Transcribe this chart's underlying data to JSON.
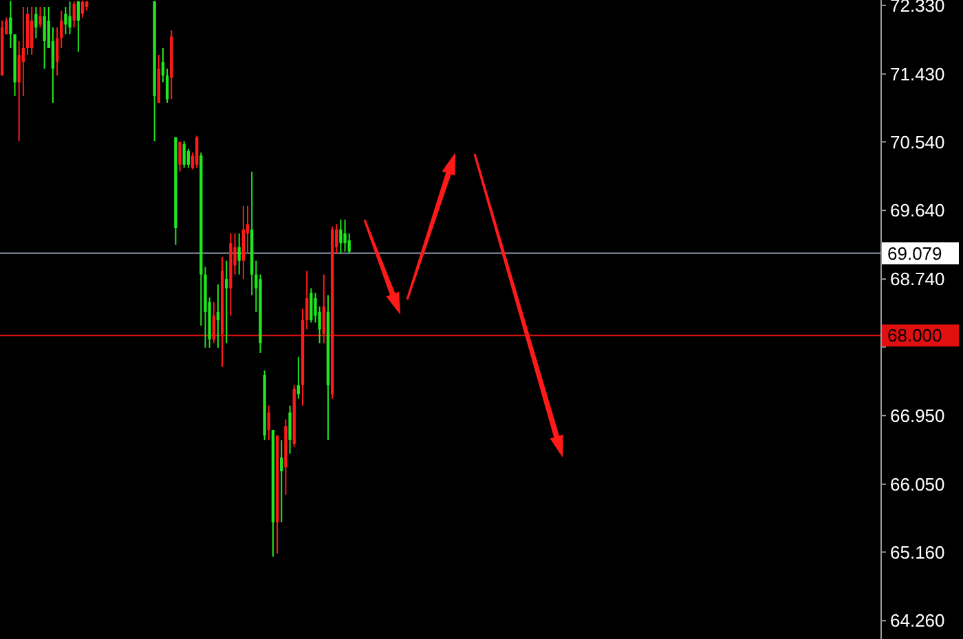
{
  "chart_data": {
    "type": "candlestick",
    "categories": [
      null,
      null,
      null,
      null,
      null,
      null,
      null,
      null,
      null,
      null,
      null,
      null,
      null,
      null,
      null,
      null,
      null,
      null,
      null,
      null,
      null,
      null,
      null,
      null,
      null,
      null,
      null,
      null,
      null,
      null,
      null,
      null,
      null,
      null,
      null,
      null,
      null,
      null,
      null,
      null,
      null,
      null,
      null,
      null,
      null,
      null,
      null,
      null,
      null,
      null,
      null,
      null,
      null,
      null,
      null,
      null,
      null,
      null,
      null,
      null,
      null,
      null,
      null,
      null,
      null,
      null,
      null,
      null,
      null,
      null,
      null,
      null,
      null,
      null,
      null,
      null,
      null,
      null,
      null,
      null,
      null,
      null,
      null,
      null,
      null,
      null,
      null,
      null,
      null,
      null,
      null,
      null,
      null,
      null,
      null,
      null,
      null,
      null,
      null,
      null,
      null,
      null,
      null,
      null,
      null,
      null,
      null,
      null,
      null,
      null,
      null,
      null,
      null,
      null,
      null,
      null,
      null,
      null,
      null,
      null,
      null,
      null,
      null,
      null,
      null,
      null,
      null,
      null,
      null,
      null,
      null,
      null,
      null,
      null,
      null,
      null,
      null,
      null,
      null,
      null,
      null,
      null,
      null,
      null,
      null,
      null,
      null,
      null,
      null,
      null,
      null,
      null,
      null,
      null,
      null,
      null,
      null,
      null,
      null,
      null,
      null,
      null,
      null,
      null,
      null,
      null,
      null,
      null,
      null,
      null,
      null,
      null,
      null,
      null,
      null,
      null,
      null,
      null,
      null,
      null,
      null,
      null,
      null,
      null,
      null,
      null,
      null,
      null,
      null,
      null,
      null,
      null,
      null,
      null,
      null,
      null,
      null,
      null,
      null,
      null,
      null,
      null,
      null,
      null,
      null,
      null,
      null,
      null
    ],
    "ohlc": [
      [
        71.41,
        72.13,
        71.41,
        72.04
      ],
      [
        71.95,
        72.17,
        71.95,
        72.13
      ],
      [
        72.17,
        72.39,
        71.77,
        71.95
      ],
      [
        71.95,
        71.95,
        71.14,
        71.32
      ],
      [
        71.32,
        71.86,
        70.55,
        71.68
      ],
      [
        71.59,
        72.31,
        71.14,
        71.77
      ],
      [
        71.77,
        72.31,
        71.68,
        72.22
      ],
      [
        71.77,
        72.31,
        71.68,
        72.13
      ],
      [
        72.22,
        72.31,
        71.9,
        72.04
      ],
      [
        72.08,
        72.31,
        72.04,
        72.19
      ],
      [
        72.19,
        72.31,
        71.5,
        71.86
      ],
      [
        72.13,
        72.31,
        71.77,
        71.77
      ],
      [
        71.86,
        72.04,
        71.05,
        71.5
      ],
      [
        71.59,
        72.04,
        71.41,
        71.9
      ],
      [
        71.9,
        72.26,
        71.77,
        72.13
      ],
      [
        72.22,
        72.31,
        71.95,
        72.08
      ],
      [
        72.19,
        72.38,
        71.95,
        72.04
      ],
      [
        72.13,
        72.38,
        72.04,
        72.35
      ],
      [
        72.38,
        72.39,
        71.72,
        72.13
      ],
      [
        72.22,
        72.39,
        72.17,
        72.38
      ],
      [
        72.31,
        72.39,
        72.26,
        72.38
      ],
      null,
      null,
      null,
      null,
      null,
      null,
      null,
      null,
      null,
      null,
      null,
      null,
      null,
      null,
      null,
      [
        72.38,
        72.39,
        70.55,
        71.14
      ],
      [
        71.05,
        71.68,
        71.05,
        71.5
      ],
      [
        71.59,
        71.77,
        71.32,
        71.41
      ],
      [
        71.41,
        71.5,
        71.05,
        71.1
      ],
      [
        71.38,
        72.0,
        71.1,
        71.92
      ],
      [
        70.6,
        70.6,
        69.19,
        69.41
      ],
      [
        70.24,
        70.54,
        70.15,
        70.54
      ],
      [
        70.51,
        70.55,
        70.2,
        70.24
      ],
      [
        70.42,
        70.45,
        70.2,
        70.24
      ],
      [
        70.2,
        70.4,
        70.18,
        70.36
      ],
      [
        70.24,
        70.62,
        70.2,
        70.6
      ],
      [
        70.36,
        70.4,
        68.13,
        68.8
      ],
      [
        68.8,
        68.9,
        67.84,
        68.31
      ],
      [
        68.44,
        68.5,
        67.84,
        67.95
      ],
      [
        67.95,
        68.44,
        67.9,
        68.26
      ],
      [
        68.31,
        68.67,
        67.84,
        68.2
      ],
      [
        68.02,
        69.03,
        67.59,
        68.85
      ],
      [
        68.74,
        68.98,
        67.9,
        68.62
      ],
      [
        68.62,
        69.34,
        68.26,
        69.21
      ],
      [
        68.92,
        69.34,
        68.8,
        69.16
      ],
      [
        69.16,
        69.34,
        68.8,
        68.98
      ],
      [
        68.98,
        69.7,
        68.74,
        69.39
      ],
      [
        69.34,
        69.7,
        69.07,
        69.46
      ],
      [
        69.39,
        70.15,
        68.53,
        68.8
      ],
      [
        68.8,
        68.98,
        68.31,
        68.62
      ],
      [
        68.74,
        68.8,
        67.77,
        67.9
      ],
      [
        67.48,
        67.54,
        66.63,
        66.69
      ],
      [
        66.76,
        67.08,
        66.63,
        66.99
      ],
      [
        66.76,
        66.76,
        65.1,
        65.55
      ],
      [
        65.55,
        66.69,
        65.14,
        66.69
      ],
      [
        66.4,
        66.63,
        65.55,
        66.22
      ],
      [
        66.27,
        66.9,
        65.91,
        66.81
      ],
      [
        66.99,
        67.08,
        66.45,
        66.63
      ],
      [
        66.58,
        67.35,
        66.54,
        67.3
      ],
      [
        67.35,
        67.72,
        67.17,
        67.23
      ],
      [
        67.35,
        68.35,
        67.08,
        68.2
      ],
      [
        68.2,
        68.85,
        68.08,
        68.49
      ],
      [
        68.56,
        68.62,
        68.17,
        68.2
      ],
      [
        68.49,
        68.56,
        68.17,
        68.26
      ],
      [
        68.31,
        68.38,
        67.9,
        68.08
      ],
      [
        68.02,
        68.8,
        67.9,
        68.38
      ],
      [
        68.31,
        68.53,
        66.63,
        67.35
      ],
      [
        67.23,
        69.43,
        67.17,
        69.39
      ],
      [
        69.16,
        69.46,
        69.07,
        69.39
      ],
      [
        69.39,
        69.52,
        69.07,
        69.21
      ],
      [
        69.34,
        69.52,
        69.1,
        69.21
      ],
      [
        69.25,
        69.34,
        69.07,
        69.1
      ],
      null,
      null,
      null,
      null,
      null,
      null,
      null,
      null,
      null,
      null,
      null,
      null,
      null,
      null,
      null,
      null,
      null,
      null,
      null,
      null,
      null,
      null,
      null,
      null,
      null,
      null,
      null,
      null,
      null,
      null,
      null,
      null,
      null,
      null,
      null,
      null,
      null,
      null,
      null,
      null,
      null,
      null,
      null,
      null,
      null,
      null,
      null,
      null,
      null,
      null,
      null,
      null,
      null,
      null,
      null,
      null,
      null,
      null,
      null,
      null,
      null,
      null,
      null,
      null,
      null,
      null,
      null,
      null,
      null,
      null,
      null,
      null,
      null,
      null,
      null,
      null,
      null,
      null,
      null,
      null,
      null,
      null,
      null,
      null,
      null,
      null,
      null,
      null,
      null,
      null,
      null,
      null,
      null,
      null,
      null,
      null,
      null,
      null,
      null,
      null,
      null,
      null,
      null,
      null,
      null,
      null,
      null,
      null,
      null,
      null,
      null,
      null,
      null,
      null,
      null,
      null,
      null,
      null,
      null,
      null,
      null,
      null,
      null,
      null,
      null
    ],
    "ylim": [
      64.02,
      72.4
    ],
    "yticks": [
      {
        "value": 72.33,
        "label": "72.330"
      },
      {
        "value": 71.43,
        "label": "71.430"
      },
      {
        "value": 70.54,
        "label": "70.540"
      },
      {
        "value": 69.64,
        "label": "69.640"
      },
      {
        "value": 68.74,
        "label": "68.740"
      },
      {
        "value": 67.85,
        "label": null
      },
      {
        "value": 66.95,
        "label": "66.950"
      },
      {
        "value": 66.05,
        "label": "66.050"
      },
      {
        "value": 65.16,
        "label": "65.160"
      },
      {
        "value": 64.26,
        "label": "64.260"
      }
    ],
    "tick_labels": "y",
    "ref_lines": [
      {
        "axis": "y",
        "value": 69.079,
        "label": "69.079",
        "color": "#8c94a8"
      },
      {
        "axis": "y",
        "value": 68.0,
        "label": "68.000",
        "color": "#e01010"
      }
    ]
  }
}
